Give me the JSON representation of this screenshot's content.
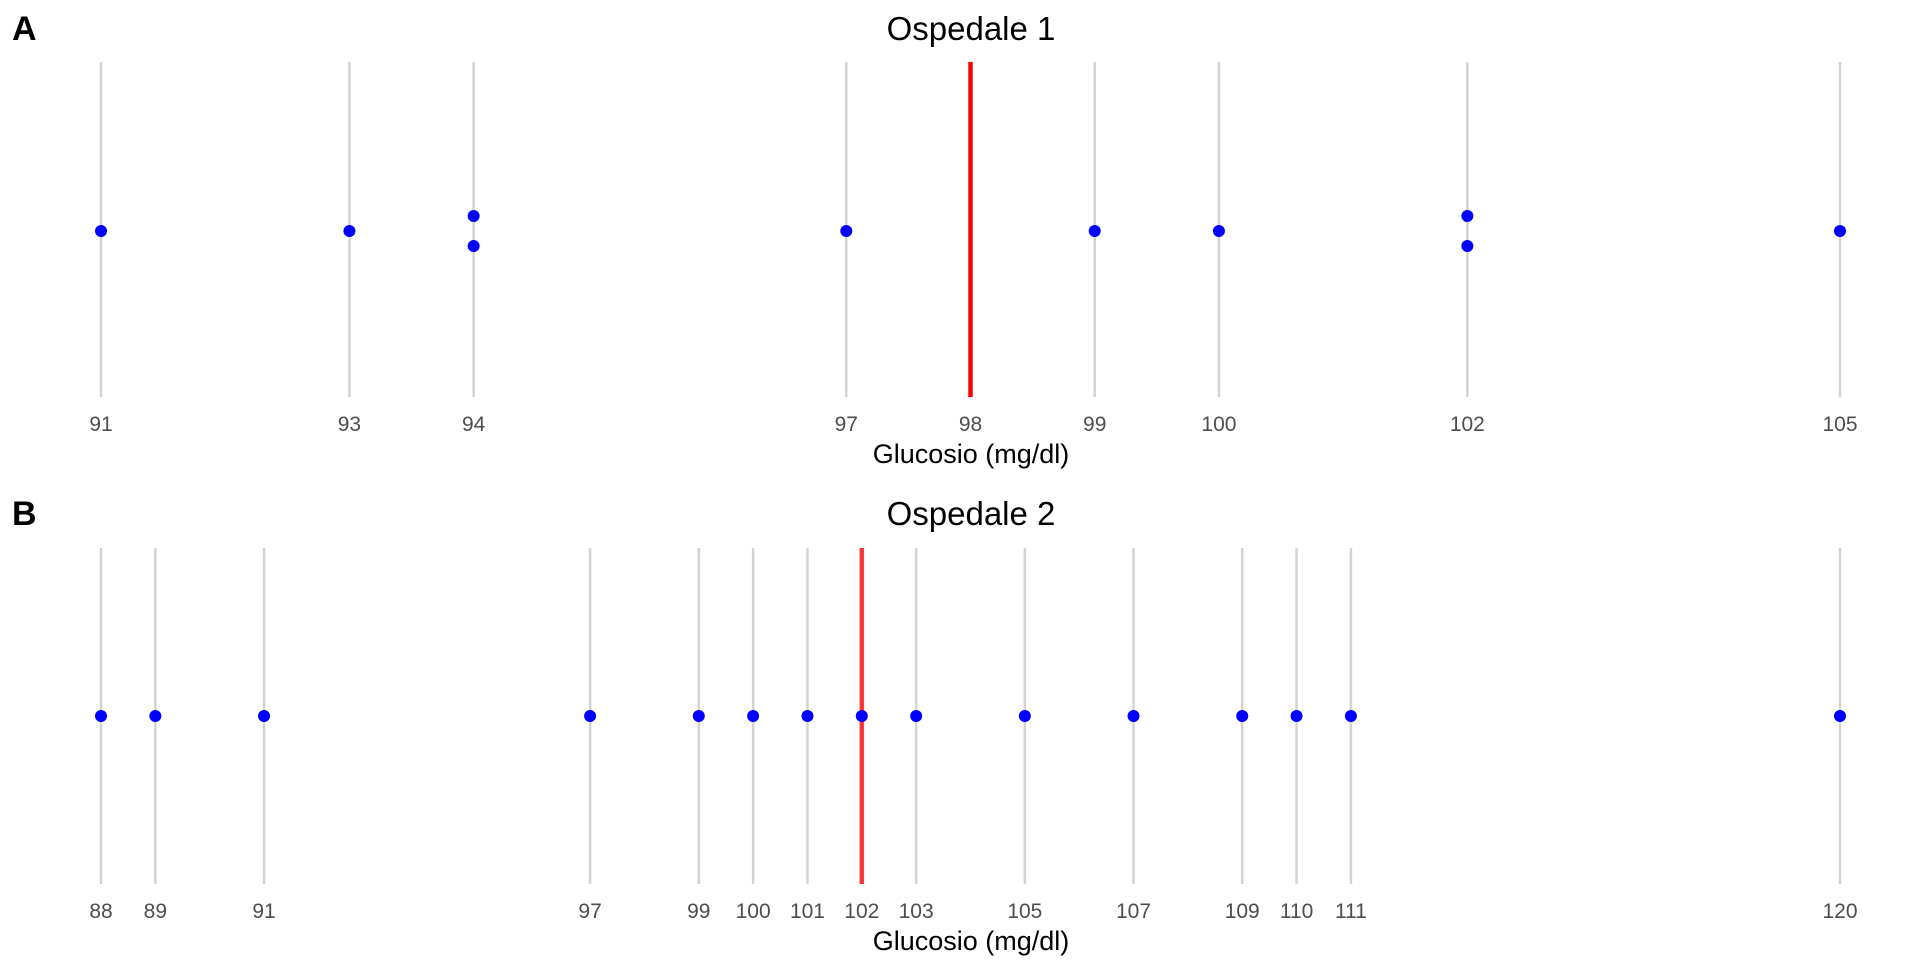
{
  "colors": {
    "points": "#0000ff",
    "reference_line": "#ff0000",
    "gridline": "#d3d3d3",
    "tick_text": "#4d4d4d"
  },
  "chart_data": [
    {
      "type": "scatter",
      "panel_label": "A",
      "title": "Ospedale 1",
      "xlabel": "Glucosio (mg/dl)",
      "ylabel": "",
      "xlim": [
        91,
        105
      ],
      "x_ticks": [
        91,
        93,
        94,
        97,
        98,
        99,
        100,
        102,
        105
      ],
      "reference_line": 98,
      "reference_opacity": 1.0,
      "points": [
        {
          "x": 91,
          "stack": 0
        },
        {
          "x": 93,
          "stack": 0
        },
        {
          "x": 94,
          "stack": 1
        },
        {
          "x": 94,
          "stack": -1
        },
        {
          "x": 97,
          "stack": 0
        },
        {
          "x": 99,
          "stack": 0
        },
        {
          "x": 100,
          "stack": 0
        },
        {
          "x": 102,
          "stack": 1
        },
        {
          "x": 102,
          "stack": -1
        },
        {
          "x": 105,
          "stack": 0
        }
      ],
      "grid": "vertical lines at data values",
      "legend": "none"
    },
    {
      "type": "scatter",
      "panel_label": "B",
      "title": "Ospedale 2",
      "xlabel": "Glucosio (mg/dl)",
      "ylabel": "",
      "xlim": [
        88,
        120
      ],
      "x_ticks": [
        88,
        89,
        91,
        97,
        99,
        100,
        101,
        102,
        103,
        105,
        107,
        109,
        110,
        111,
        120
      ],
      "reference_line": 102,
      "reference_opacity": 0.75,
      "points": [
        {
          "x": 88,
          "stack": 0
        },
        {
          "x": 89,
          "stack": 0
        },
        {
          "x": 91,
          "stack": 0
        },
        {
          "x": 97,
          "stack": 0
        },
        {
          "x": 99,
          "stack": 0
        },
        {
          "x": 100,
          "stack": 0
        },
        {
          "x": 101,
          "stack": 0
        },
        {
          "x": 102,
          "stack": 0
        },
        {
          "x": 103,
          "stack": 0
        },
        {
          "x": 105,
          "stack": 0
        },
        {
          "x": 107,
          "stack": 0
        },
        {
          "x": 109,
          "stack": 0
        },
        {
          "x": 110,
          "stack": 0
        },
        {
          "x": 111,
          "stack": 0
        },
        {
          "x": 120,
          "stack": 0
        }
      ],
      "grid": "vertical lines at data values",
      "legend": "none"
    }
  ]
}
